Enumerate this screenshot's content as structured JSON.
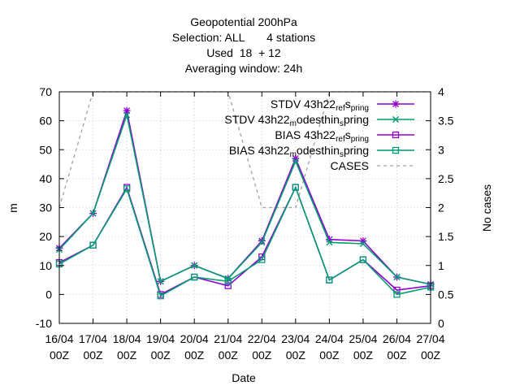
{
  "chart_data": {
    "type": "line",
    "title_lines": [
      "Geopotential 200hPa",
      "Selection: ALL       4 stations",
      "Used  18  + 12",
      "Averaging window: 24h"
    ],
    "xlabel": "Date",
    "ylabel": "m",
    "y2label": "No cases",
    "ylim": [
      -10,
      70
    ],
    "y2lim": [
      0,
      4
    ],
    "yticks": [
      -10,
      0,
      10,
      20,
      30,
      40,
      50,
      60,
      70
    ],
    "y2ticks": [
      0,
      0.5,
      1,
      1.5,
      2,
      2.5,
      3,
      3.5,
      4
    ],
    "x_positions": [
      0,
      1,
      2,
      3,
      4,
      5,
      6,
      7,
      8,
      9,
      10,
      11
    ],
    "x_ticks": [
      {
        "date": "16/04",
        "hour": "00Z"
      },
      {
        "date": "17/04",
        "hour": "00Z"
      },
      {
        "date": "18/04",
        "hour": "00Z"
      },
      {
        "date": "19/04",
        "hour": "00Z"
      },
      {
        "date": "20/04",
        "hour": "00Z"
      },
      {
        "date": "21/04",
        "hour": "00Z"
      },
      {
        "date": "22/04",
        "hour": "00Z"
      },
      {
        "date": "23/04",
        "hour": "00Z"
      },
      {
        "date": "24/04",
        "hour": "00Z"
      },
      {
        "date": "25/04",
        "hour": "00Z"
      },
      {
        "date": "26/04",
        "hour": "00Z"
      },
      {
        "date": "27/04",
        "hour": "00Z"
      }
    ],
    "grid": true,
    "legend_position": "top-right",
    "series": [
      {
        "name": "STDV 43h22_ref_spring",
        "legend_parts": [
          "STDV 43h22",
          "ref",
          "s",
          "pring"
        ],
        "color": "#9400d3",
        "marker": "star",
        "axis": "y1",
        "values": [
          16,
          28,
          63.5,
          4.5,
          10,
          5.5,
          18.5,
          47,
          19,
          18.5,
          6,
          3.5
        ]
      },
      {
        "name": "STDV 43h22_modesthin_spring",
        "legend_parts": [
          "STDV 43h22",
          "m",
          "odesthin",
          "s",
          "pring"
        ],
        "color": "#009e73",
        "marker": "x",
        "axis": "y1",
        "values": [
          15.5,
          28,
          62,
          4.5,
          10,
          5.5,
          18,
          46,
          18,
          17.5,
          6,
          3.5
        ]
      },
      {
        "name": "BIAS 43h22_ref_spring",
        "legend_parts": [
          "BIAS 43h22",
          "ref",
          "s",
          "pring"
        ],
        "color": "#9400d3",
        "marker": "square",
        "axis": "y1",
        "values": [
          11,
          17,
          37,
          0,
          6,
          3,
          13,
          37,
          5,
          12,
          1.5,
          3
        ]
      },
      {
        "name": "BIAS 43h22_modesthin_spring",
        "legend_parts": [
          "BIAS 43h22",
          "m",
          "odesthin",
          "s",
          "pring"
        ],
        "color": "#009e73",
        "marker": "square",
        "axis": "y1",
        "values": [
          10.5,
          17,
          36.5,
          -0.5,
          6,
          4.5,
          12,
          37,
          5,
          12,
          0,
          2.5
        ]
      },
      {
        "name": "CASES",
        "legend_parts": [
          "CASES"
        ],
        "color": "#a0a0a0",
        "dashed": true,
        "marker": "none",
        "axis": "y2",
        "values": [
          2,
          4,
          4,
          4,
          4,
          4,
          2,
          2,
          4,
          4,
          4,
          4
        ]
      }
    ]
  }
}
